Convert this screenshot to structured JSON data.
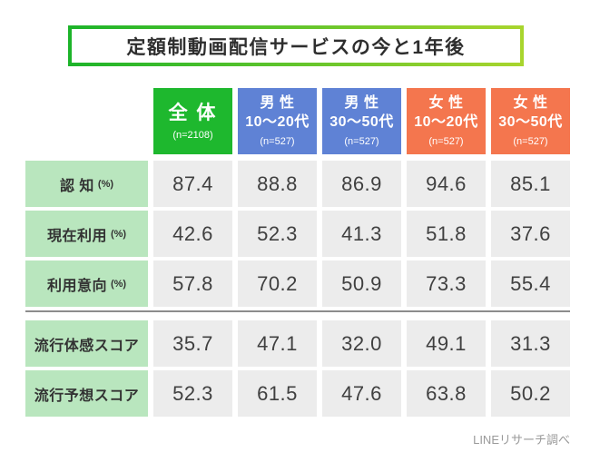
{
  "title": "定額制動画配信サービスの今と1年後",
  "footer": "LINEリサーチ調べ",
  "colors": {
    "title_border_start": "#1db42a",
    "title_border_end": "#a8d52e",
    "header_overall_bg": "#1eb82e",
    "header_male_bg": "#5f82d5",
    "header_female_bg": "#f4764e",
    "row_label_bg": "#b9e6be",
    "data_cell_bg": "#ececec",
    "divider": "#8c8c8c"
  },
  "chart_data": {
    "type": "table",
    "title": "定額制動画配信サービスの今と1年後",
    "columns": [
      {
        "label": "全 体",
        "label2": "",
        "sub": "(n=2108)",
        "group": "overall"
      },
      {
        "label": "男 性",
        "label2": "10〜20代",
        "sub": "(n=527)",
        "group": "male"
      },
      {
        "label": "男 性",
        "label2": "30〜50代",
        "sub": "(n=527)",
        "group": "male"
      },
      {
        "label": "女 性",
        "label2": "10〜20代",
        "sub": "(n=527)",
        "group": "female"
      },
      {
        "label": "女 性",
        "label2": "30〜50代",
        "sub": "(n=527)",
        "group": "female"
      }
    ],
    "rows": [
      {
        "label": "認 知",
        "unit": "(%)",
        "group": 1,
        "values": [
          "87.4",
          "88.8",
          "86.9",
          "94.6",
          "85.1"
        ]
      },
      {
        "label": "現在利用",
        "unit": "(%)",
        "group": 1,
        "values": [
          "42.6",
          "52.3",
          "41.3",
          "51.8",
          "37.6"
        ]
      },
      {
        "label": "利用意向",
        "unit": "(%)",
        "group": 1,
        "values": [
          "57.8",
          "70.2",
          "50.9",
          "73.3",
          "55.4"
        ]
      },
      {
        "label": "流行体感スコア",
        "unit": "",
        "group": 2,
        "values": [
          "35.7",
          "47.1",
          "32.0",
          "49.1",
          "31.3"
        ]
      },
      {
        "label": "流行予想スコア",
        "unit": "",
        "group": 2,
        "values": [
          "52.3",
          "61.5",
          "47.6",
          "63.8",
          "50.2"
        ]
      }
    ]
  }
}
